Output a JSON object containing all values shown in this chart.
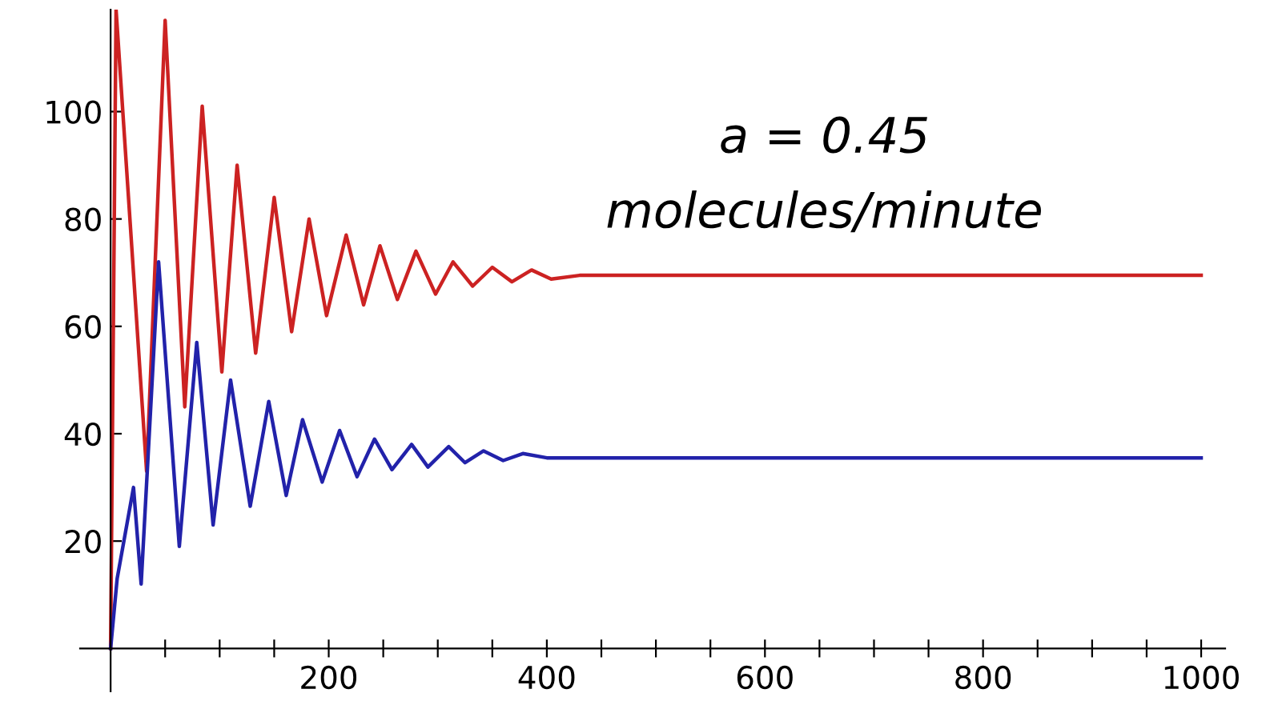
{
  "chart_data": {
    "type": "line",
    "annotations": [
      "a = 0.45",
      "molecules/minute"
    ],
    "series": [
      {
        "color": "#cc2222",
        "x": [
          0,
          5,
          33,
          50,
          68,
          84,
          102,
          116,
          133,
          150,
          166,
          182,
          198,
          216,
          232,
          247,
          263,
          280,
          298,
          314,
          332,
          350,
          368,
          386,
          404,
          430,
          1000
        ],
        "values": [
          0,
          119,
          33,
          117,
          45,
          101,
          51.5,
          90,
          55,
          84,
          59,
          80,
          62,
          77,
          64,
          75,
          65,
          74,
          66,
          72,
          67.5,
          71,
          68.3,
          70.5,
          68.8,
          69.5,
          69.5
        ]
      },
      {
        "color": "#2222aa",
        "x": [
          0,
          6,
          21,
          28,
          44,
          63,
          79,
          94,
          110,
          128,
          145,
          161,
          176,
          194,
          210,
          226,
          242,
          258,
          276,
          291,
          310,
          325,
          342,
          360,
          378,
          400,
          1000
        ],
        "values": [
          0,
          13,
          30,
          12,
          72,
          19,
          57,
          23,
          50,
          26.5,
          46,
          28.5,
          42.6,
          31,
          40.6,
          32,
          39,
          33.3,
          38,
          33.8,
          37.6,
          34.6,
          36.8,
          35,
          36.3,
          35.5,
          35.5
        ]
      }
    ],
    "xlim": [
      -28,
      1022
    ],
    "ylim": [
      -8,
      119
    ],
    "xticks": [
      {
        "value": 50,
        "label": null
      },
      {
        "value": 100,
        "label": null
      },
      {
        "value": 150,
        "label": null
      },
      200,
      {
        "value": 250,
        "label": null
      },
      {
        "value": 300,
        "label": null
      },
      {
        "value": 350,
        "label": null
      },
      400,
      {
        "value": 450,
        "label": null
      },
      {
        "value": 500,
        "label": null
      },
      {
        "value": 550,
        "label": null
      },
      600,
      {
        "value": 650,
        "label": null
      },
      {
        "value": 700,
        "label": null
      },
      {
        "value": 750,
        "label": null
      },
      800,
      {
        "value": 850,
        "label": null
      },
      {
        "value": 900,
        "label": null
      },
      {
        "value": 950,
        "label": null
      },
      1000
    ],
    "yticks": [
      20,
      40,
      60,
      80,
      100
    ],
    "grid": false,
    "legend": false
  }
}
